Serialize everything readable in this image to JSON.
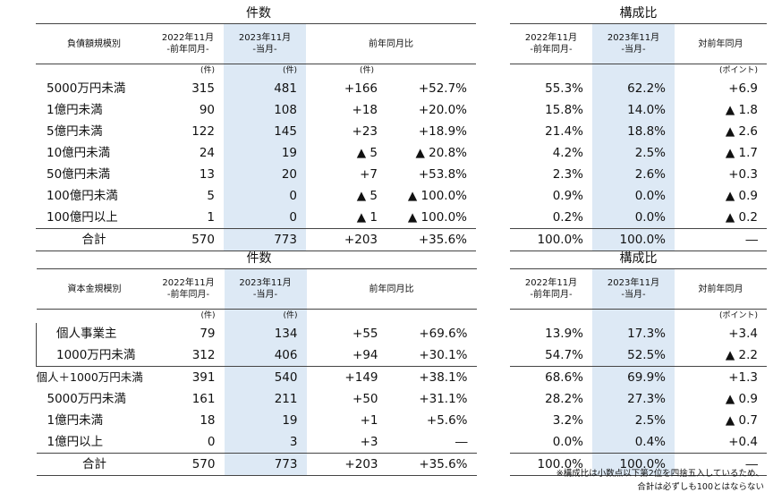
{
  "top": {
    "left": {
      "title": "件数",
      "header": {
        "label": "負債額規模別",
        "prev": [
          "2022年11月",
          "-前年同月-"
        ],
        "cur": [
          "2023年11月",
          "-当月-"
        ],
        "yoy": "前年同月比"
      },
      "units": {
        "prev": "(件)",
        "cur": "(件)",
        "diff": "(件)"
      },
      "rows": [
        {
          "label": "5000万円未満",
          "prev": "315",
          "cur": "481",
          "diff": "+166",
          "pct": "+52.7%"
        },
        {
          "label": "1億円未満",
          "prev": "90",
          "cur": "108",
          "diff": "+18",
          "pct": "+20.0%"
        },
        {
          "label": "5億円未満",
          "prev": "122",
          "cur": "145",
          "diff": "+23",
          "pct": "+18.9%"
        },
        {
          "label": "10億円未満",
          "prev": "24",
          "cur": "19",
          "diff": "▲ 5",
          "pct": "▲ 20.8%"
        },
        {
          "label": "50億円未満",
          "prev": "13",
          "cur": "20",
          "diff": "+7",
          "pct": "+53.8%"
        },
        {
          "label": "100億円未満",
          "prev": "5",
          "cur": "0",
          "diff": "▲ 5",
          "pct": "▲ 100.0%"
        },
        {
          "label": "100億円以上",
          "prev": "1",
          "cur": "0",
          "diff": "▲ 1",
          "pct": "▲ 100.0%"
        }
      ],
      "total": {
        "label": "合計",
        "prev": "570",
        "cur": "773",
        "diff": "+203",
        "pct": "+35.6%"
      }
    },
    "right": {
      "title": "構成比",
      "header": {
        "prev": [
          "2022年11月",
          "-前年同月-"
        ],
        "cur": [
          "2023年11月",
          "-当月-"
        ],
        "yoy": "対前年同月"
      },
      "units": {
        "yoy": "(ポイント)"
      },
      "rows": [
        {
          "prev": "55.3%",
          "cur": "62.2%",
          "yoy": "+6.9"
        },
        {
          "prev": "15.8%",
          "cur": "14.0%",
          "yoy": "▲ 1.8"
        },
        {
          "prev": "21.4%",
          "cur": "18.8%",
          "yoy": "▲ 2.6"
        },
        {
          "prev": "4.2%",
          "cur": "2.5%",
          "yoy": "▲ 1.7"
        },
        {
          "prev": "2.3%",
          "cur": "2.6%",
          "yoy": "+0.3"
        },
        {
          "prev": "0.9%",
          "cur": "0.0%",
          "yoy": "▲ 0.9"
        },
        {
          "prev": "0.2%",
          "cur": "0.0%",
          "yoy": "▲ 0.2"
        }
      ],
      "total": {
        "prev": "100.0%",
        "cur": "100.0%",
        "yoy": "―"
      }
    }
  },
  "bottom": {
    "left": {
      "title": "件数",
      "header": {
        "label": "資本金規模別",
        "prev": [
          "2022年11月",
          "-前年同月-"
        ],
        "cur": [
          "2023年11月",
          "-当月-"
        ],
        "yoy": "前年同月比"
      },
      "units": {
        "prev": "(件)",
        "cur": "(件)"
      },
      "rows": [
        {
          "label": "個人事業主",
          "prev": "79",
          "cur": "134",
          "diff": "+55",
          "pct": "+69.6%"
        },
        {
          "label": "1000万円未満",
          "prev": "312",
          "cur": "406",
          "diff": "+94",
          "pct": "+30.1%"
        },
        {
          "label": "個人＋1000万円未満",
          "prev": "391",
          "cur": "540",
          "diff": "+149",
          "pct": "+38.1%"
        },
        {
          "label": "5000万円未満",
          "prev": "161",
          "cur": "211",
          "diff": "+50",
          "pct": "+31.1%"
        },
        {
          "label": "1億円未満",
          "prev": "18",
          "cur": "19",
          "diff": "+1",
          "pct": "+5.6%"
        },
        {
          "label": "1億円以上",
          "prev": "0",
          "cur": "3",
          "diff": "+3",
          "pct": "―"
        }
      ],
      "total": {
        "label": "合計",
        "prev": "570",
        "cur": "773",
        "diff": "+203",
        "pct": "+35.6%"
      }
    },
    "right": {
      "title": "構成比",
      "header": {
        "prev": [
          "2022年11月",
          "-前年同月-"
        ],
        "cur": [
          "2023年11月",
          "-当月-"
        ],
        "yoy": "対前年同月"
      },
      "units": {
        "yoy": "(ポイント)"
      },
      "rows": [
        {
          "prev": "13.9%",
          "cur": "17.3%",
          "yoy": "+3.4"
        },
        {
          "prev": "54.7%",
          "cur": "52.5%",
          "yoy": "▲ 2.2"
        },
        {
          "prev": "68.6%",
          "cur": "69.9%",
          "yoy": "+1.3"
        },
        {
          "prev": "28.2%",
          "cur": "27.3%",
          "yoy": "▲ 0.9"
        },
        {
          "prev": "3.2%",
          "cur": "2.5%",
          "yoy": "▲ 0.7"
        },
        {
          "prev": "0.0%",
          "cur": "0.4%",
          "yoy": "+0.4"
        }
      ],
      "total": {
        "prev": "100.0%",
        "cur": "100.0%",
        "yoy": "―"
      }
    }
  },
  "footnote": [
    "※構成比は小数点以下第2位を四捨五入しているため、",
    "合計は必ずしも100とはならない"
  ]
}
